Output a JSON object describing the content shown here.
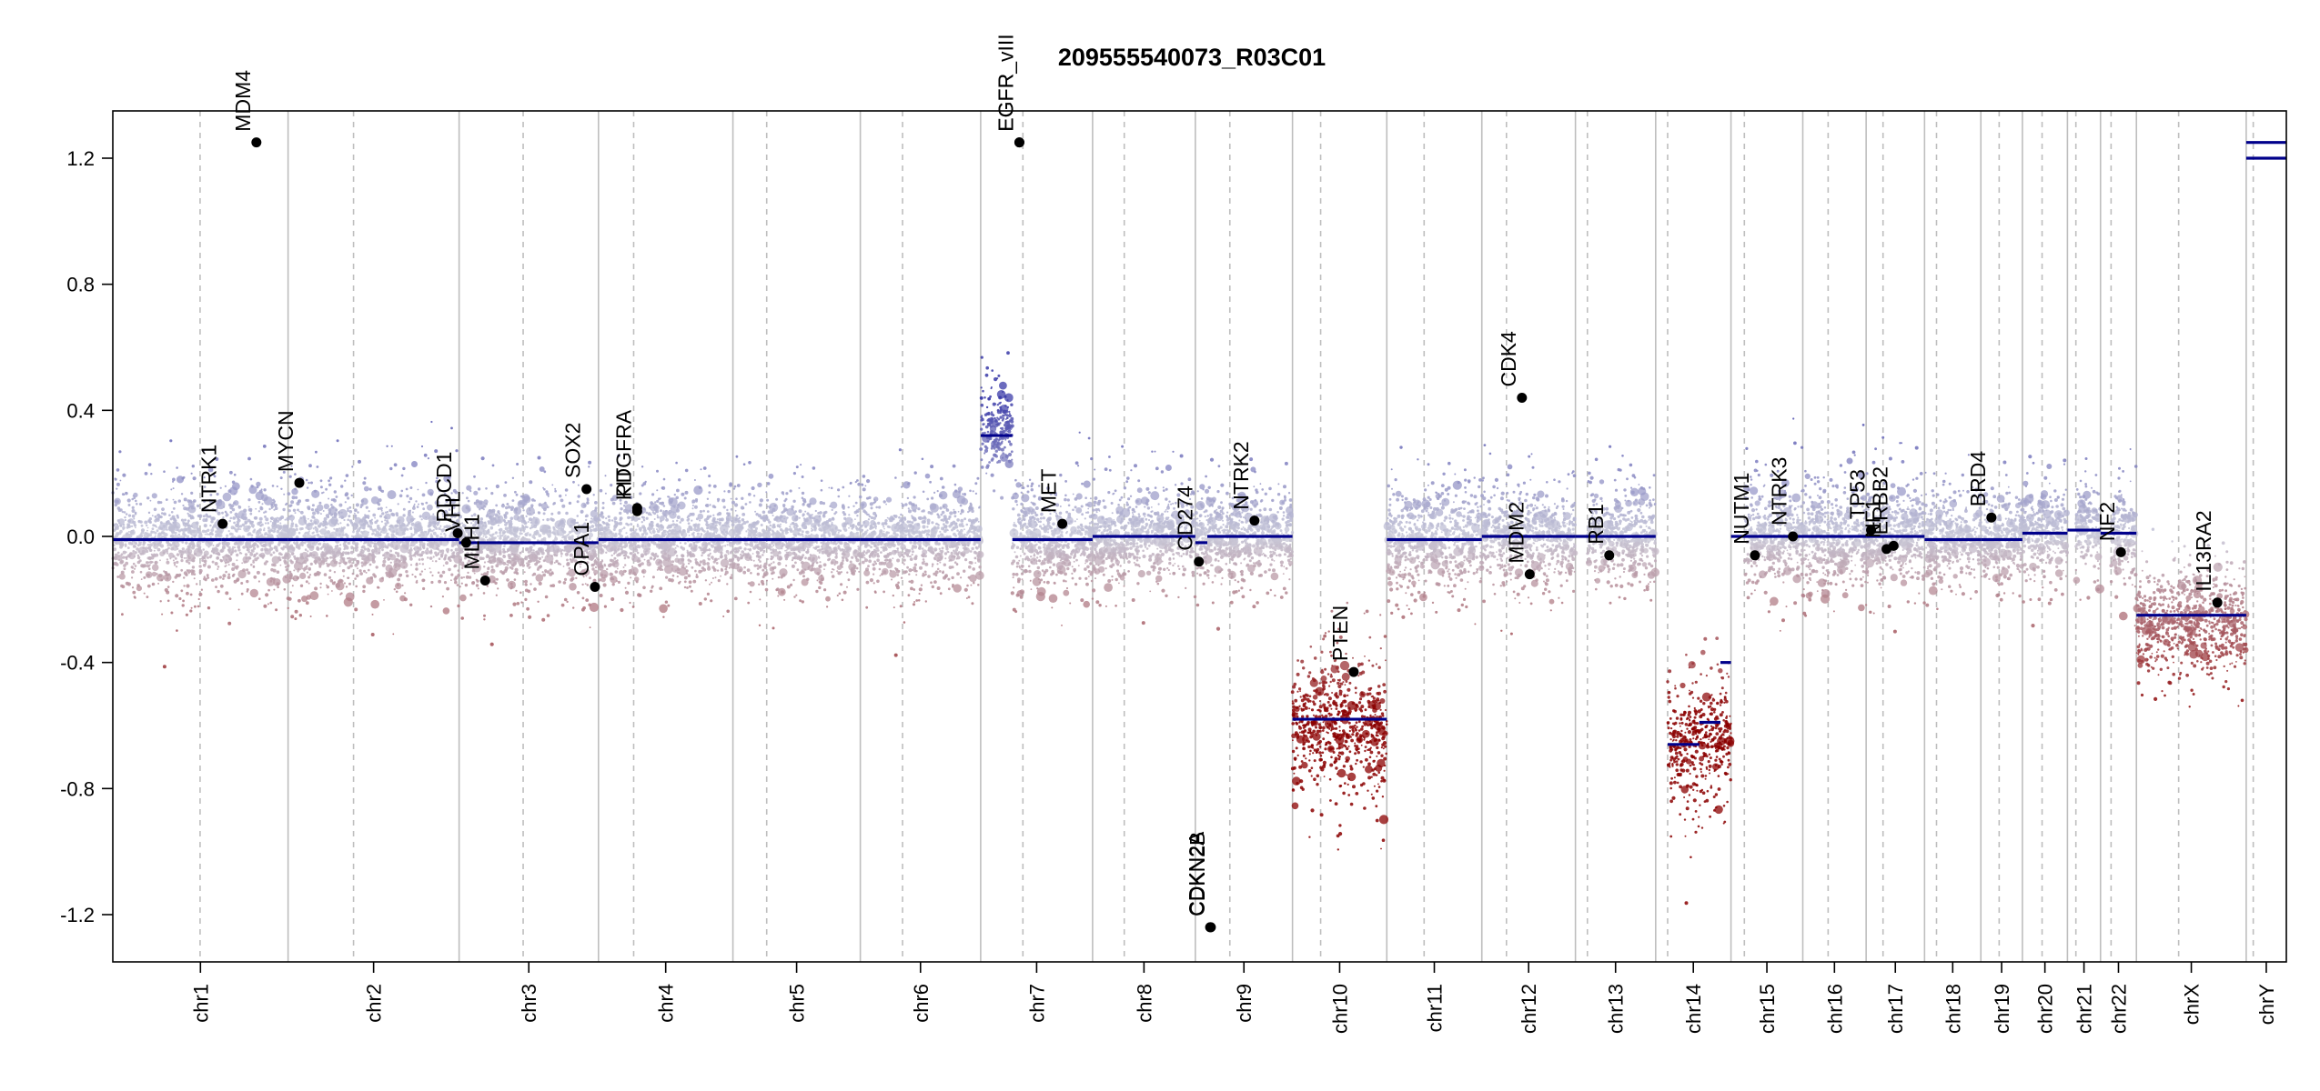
{
  "chart_data": {
    "type": "scatter",
    "title": "209555540073_R03C01",
    "xlabel": "",
    "ylabel": "",
    "ylim": [
      -1.35,
      1.35
    ],
    "y_ticks": [
      -1.2,
      -0.8,
      -0.4,
      0.0,
      0.4,
      0.8,
      1.2
    ],
    "y_tick_labels": [
      "-1.2",
      "-0.8",
      "-0.4",
      "0.0",
      "0.4",
      "0.8",
      "1.2"
    ],
    "chromosomes": [
      {
        "name": "chr1",
        "length": 249,
        "centromere": 124
      },
      {
        "name": "chr2",
        "length": 243,
        "centromere": 93
      },
      {
        "name": "chr3",
        "length": 198,
        "centromere": 91
      },
      {
        "name": "chr4",
        "length": 191,
        "centromere": 50
      },
      {
        "name": "chr5",
        "length": 181,
        "centromere": 48
      },
      {
        "name": "chr6",
        "length": 171,
        "centromere": 60
      },
      {
        "name": "chr7",
        "length": 159,
        "centromere": 60
      },
      {
        "name": "chr8",
        "length": 146,
        "centromere": 45
      },
      {
        "name": "chr9",
        "length": 138,
        "centromere": 49
      },
      {
        "name": "chr10",
        "length": 134,
        "centromere": 40
      },
      {
        "name": "chr11",
        "length": 135,
        "centromere": 53
      },
      {
        "name": "chr12",
        "length": 133,
        "centromere": 35
      },
      {
        "name": "chr13",
        "length": 114,
        "centromere": 17
      },
      {
        "name": "chr14",
        "length": 107,
        "centromere": 17
      },
      {
        "name": "chr15",
        "length": 102,
        "centromere": 19
      },
      {
        "name": "chr16",
        "length": 90,
        "centromere": 36
      },
      {
        "name": "chr17",
        "length": 83,
        "centromere": 24
      },
      {
        "name": "chr18",
        "length": 80,
        "centromere": 17
      },
      {
        "name": "chr19",
        "length": 59,
        "centromere": 26
      },
      {
        "name": "chr20",
        "length": 64,
        "centromere": 28
      },
      {
        "name": "chr21",
        "length": 47,
        "centromere": 12
      },
      {
        "name": "chr22",
        "length": 51,
        "centromere": 15
      },
      {
        "name": "chrX",
        "length": 156,
        "centromere": 60
      },
      {
        "name": "chrY",
        "length": 57,
        "centromere": 10
      }
    ],
    "segments": [
      {
        "chr": "chr1",
        "start": 0,
        "end": 154,
        "y": -0.01
      },
      {
        "chr": "chr1",
        "start": 154,
        "end": 249,
        "y": -0.01
      },
      {
        "chr": "chr2",
        "start": 0,
        "end": 243,
        "y": -0.01
      },
      {
        "chr": "chr3",
        "start": 0,
        "end": 198,
        "y": -0.02
      },
      {
        "chr": "chr4",
        "start": 0,
        "end": 191,
        "y": -0.01
      },
      {
        "chr": "chr5",
        "start": 0,
        "end": 181,
        "y": -0.01
      },
      {
        "chr": "chr6",
        "start": 0,
        "end": 171,
        "y": -0.01
      },
      {
        "chr": "chr7",
        "start": 0,
        "end": 45,
        "y": 0.32
      },
      {
        "chr": "chr7",
        "start": 45,
        "end": 159,
        "y": -0.01
      },
      {
        "chr": "chr8",
        "start": 0,
        "end": 146,
        "y": 0.0
      },
      {
        "chr": "chr9",
        "start": 0,
        "end": 17,
        "y": -0.02
      },
      {
        "chr": "chr9",
        "start": 17,
        "end": 138,
        "y": 0.0
      },
      {
        "chr": "chr10",
        "start": 0,
        "end": 134,
        "y": -0.58
      },
      {
        "chr": "chr11",
        "start": 0,
        "end": 135,
        "y": -0.01
      },
      {
        "chr": "chr12",
        "start": 0,
        "end": 133,
        "y": 0.0
      },
      {
        "chr": "chr13",
        "start": 0,
        "end": 114,
        "y": 0.0
      },
      {
        "chr": "chr14",
        "start": 17,
        "end": 62,
        "y": -0.66
      },
      {
        "chr": "chr14",
        "start": 62,
        "end": 92,
        "y": -0.59
      },
      {
        "chr": "chr14",
        "start": 92,
        "end": 107,
        "y": -0.4
      },
      {
        "chr": "chr15",
        "start": 0,
        "end": 102,
        "y": 0.0
      },
      {
        "chr": "chr16",
        "start": 0,
        "end": 90,
        "y": 0.0
      },
      {
        "chr": "chr17",
        "start": 0,
        "end": 83,
        "y": 0.0
      },
      {
        "chr": "chr18",
        "start": 0,
        "end": 80,
        "y": -0.01
      },
      {
        "chr": "chr19",
        "start": 0,
        "end": 59,
        "y": -0.01
      },
      {
        "chr": "chr20",
        "start": 0,
        "end": 64,
        "y": 0.01
      },
      {
        "chr": "chr21",
        "start": 0,
        "end": 47,
        "y": 0.02
      },
      {
        "chr": "chr22",
        "start": 0,
        "end": 51,
        "y": 0.01
      },
      {
        "chr": "chrX",
        "start": 0,
        "end": 156,
        "y": -0.25
      },
      {
        "chr": "chrY",
        "start": 0,
        "end": 57,
        "y": 1.2
      },
      {
        "chr": "chrY",
        "start": 0,
        "end": 57,
        "y": 1.25
      }
    ],
    "noise_profile": [
      {
        "chr": "chr1",
        "center": -0.01,
        "spread": 0.11,
        "start": 0,
        "end": 249
      },
      {
        "chr": "chr2",
        "center": -0.01,
        "spread": 0.11,
        "start": 0,
        "end": 243
      },
      {
        "chr": "chr3",
        "center": -0.02,
        "spread": 0.11,
        "start": 0,
        "end": 198
      },
      {
        "chr": "chr4",
        "center": -0.01,
        "spread": 0.1,
        "start": 0,
        "end": 191
      },
      {
        "chr": "chr5",
        "center": -0.01,
        "spread": 0.1,
        "start": 0,
        "end": 181
      },
      {
        "chr": "chr6",
        "center": -0.01,
        "spread": 0.1,
        "start": 0,
        "end": 171
      },
      {
        "chr": "chr7",
        "center": 0.34,
        "spread": 0.09,
        "start": 0,
        "end": 45
      },
      {
        "chr": "chr7",
        "center": -0.01,
        "spread": 0.1,
        "start": 45,
        "end": 159
      },
      {
        "chr": "chr8",
        "center": 0.0,
        "spread": 0.1,
        "start": 0,
        "end": 146
      },
      {
        "chr": "chr9",
        "center": 0.0,
        "spread": 0.1,
        "start": 0,
        "end": 138
      },
      {
        "chr": "chr10",
        "center": -0.6,
        "spread": 0.16,
        "start": 0,
        "end": 134
      },
      {
        "chr": "chr11",
        "center": -0.01,
        "spread": 0.11,
        "start": 0,
        "end": 135
      },
      {
        "chr": "chr12",
        "center": 0.0,
        "spread": 0.11,
        "start": 0,
        "end": 133
      },
      {
        "chr": "chr13",
        "center": 0.0,
        "spread": 0.1,
        "start": 17,
        "end": 114
      },
      {
        "chr": "chr14",
        "center": -0.65,
        "spread": 0.14,
        "start": 17,
        "end": 107
      },
      {
        "chr": "chr15",
        "center": 0.0,
        "spread": 0.11,
        "start": 19,
        "end": 102
      },
      {
        "chr": "chr16",
        "center": 0.0,
        "spread": 0.11,
        "start": 0,
        "end": 90
      },
      {
        "chr": "chr17",
        "center": 0.0,
        "spread": 0.11,
        "start": 0,
        "end": 83
      },
      {
        "chr": "chr18",
        "center": -0.01,
        "spread": 0.1,
        "start": 0,
        "end": 80
      },
      {
        "chr": "chr19",
        "center": -0.01,
        "spread": 0.1,
        "start": 0,
        "end": 59
      },
      {
        "chr": "chr20",
        "center": 0.01,
        "spread": 0.1,
        "start": 0,
        "end": 64
      },
      {
        "chr": "chr21",
        "center": 0.02,
        "spread": 0.1,
        "start": 12,
        "end": 47
      },
      {
        "chr": "chr22",
        "center": 0.01,
        "spread": 0.12,
        "start": 15,
        "end": 51
      },
      {
        "chr": "chrX",
        "center": -0.27,
        "spread": 0.11,
        "start": 0,
        "end": 156
      }
    ],
    "genes": [
      {
        "name": "NTRK1",
        "chr": "chr1",
        "pos": 156,
        "y": 0.04
      },
      {
        "name": "MDM4",
        "chr": "chr1",
        "pos": 204,
        "y": 1.25
      },
      {
        "name": "MYCN",
        "chr": "chr2",
        "pos": 16,
        "y": 0.17
      },
      {
        "name": "PDCD1",
        "chr": "chr2",
        "pos": 241,
        "y": 0.01
      },
      {
        "name": "VHL",
        "chr": "chr3",
        "pos": 10,
        "y": -0.02
      },
      {
        "name": "MLH1",
        "chr": "chr3",
        "pos": 37,
        "y": -0.14
      },
      {
        "name": "SOX2",
        "chr": "chr3",
        "pos": 181,
        "y": 0.15
      },
      {
        "name": "OPA1",
        "chr": "chr3",
        "pos": 193,
        "y": -0.16
      },
      {
        "name": "PDGFRA",
        "chr": "chr4",
        "pos": 55,
        "y": 0.09
      },
      {
        "name": "KIT",
        "chr": "chr4",
        "pos": 55,
        "y": 0.08
      },
      {
        "name": "EGFR",
        "chr": "chr7",
        "pos": 55,
        "y": 1.25
      },
      {
        "name": "EGFR_vIII",
        "chr": "chr7",
        "pos": 55,
        "y": 1.25
      },
      {
        "name": "MET",
        "chr": "chr7",
        "pos": 116,
        "y": 0.04
      },
      {
        "name": "CD274",
        "chr": "chr9",
        "pos": 5,
        "y": -0.08
      },
      {
        "name": "CDKN2A",
        "chr": "chr9",
        "pos": 21,
        "y": -1.24
      },
      {
        "name": "CDKN2B",
        "chr": "chr9",
        "pos": 22,
        "y": -1.24
      },
      {
        "name": "NTRK2",
        "chr": "chr9",
        "pos": 84,
        "y": 0.05
      },
      {
        "name": "PTEN",
        "chr": "chr10",
        "pos": 87,
        "y": -0.43
      },
      {
        "name": "CDK4",
        "chr": "chr12",
        "pos": 57,
        "y": 0.44
      },
      {
        "name": "MDM2",
        "chr": "chr12",
        "pos": 68,
        "y": -0.12
      },
      {
        "name": "RB1",
        "chr": "chr13",
        "pos": 48,
        "y": -0.06
      },
      {
        "name": "NUTM1",
        "chr": "chr15",
        "pos": 34,
        "y": -0.06
      },
      {
        "name": "NTRK3",
        "chr": "chr15",
        "pos": 88,
        "y": 0.0
      },
      {
        "name": "TP53",
        "chr": "chr17",
        "pos": 7,
        "y": 0.02
      },
      {
        "name": "NF1",
        "chr": "chr17",
        "pos": 29,
        "y": -0.04
      },
      {
        "name": "ERBB2",
        "chr": "chr17",
        "pos": 39,
        "y": -0.03
      },
      {
        "name": "BRD4",
        "chr": "chr19",
        "pos": 15,
        "y": 0.06
      },
      {
        "name": "NF2",
        "chr": "chr22",
        "pos": 29,
        "y": -0.05
      },
      {
        "name": "IL13RA2",
        "chr": "chrX",
        "pos": 115,
        "y": -0.21
      }
    ],
    "grid": false,
    "legend": "none"
  },
  "colors": {
    "segment": "#00008B",
    "gain": "#3A3AA8",
    "neutral": "#C8C8D8",
    "loss": "#8B0000",
    "boundary_line": "#BEBEBE",
    "centromere_line": "#BEBEBE",
    "point_marker": "#000000"
  }
}
